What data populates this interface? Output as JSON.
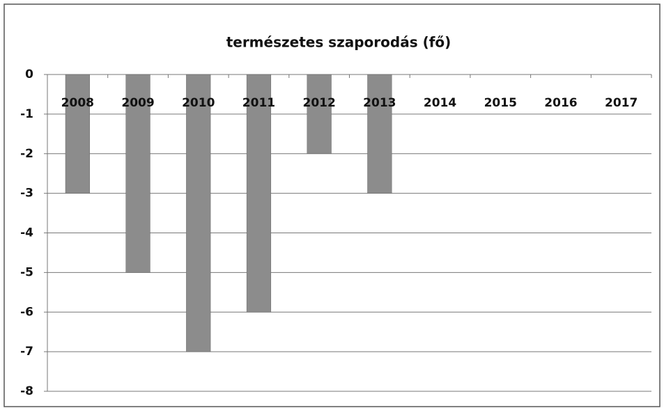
{
  "chart_data": {
    "type": "bar",
    "title": "természetes szaporodás (fő)",
    "categories": [
      "2008",
      "2009",
      "2010",
      "2011",
      "2012",
      "2013",
      "2014",
      "2015",
      "2016",
      "2017"
    ],
    "values": [
      -3,
      -5,
      -7,
      -6,
      -2,
      -3,
      null,
      null,
      null,
      null
    ],
    "color": "#8c8c8c",
    "ylim": [
      -8,
      0
    ],
    "yticks": [
      0,
      -1,
      -2,
      -3,
      -4,
      -5,
      -6,
      -7,
      -8
    ],
    "grid": true
  }
}
